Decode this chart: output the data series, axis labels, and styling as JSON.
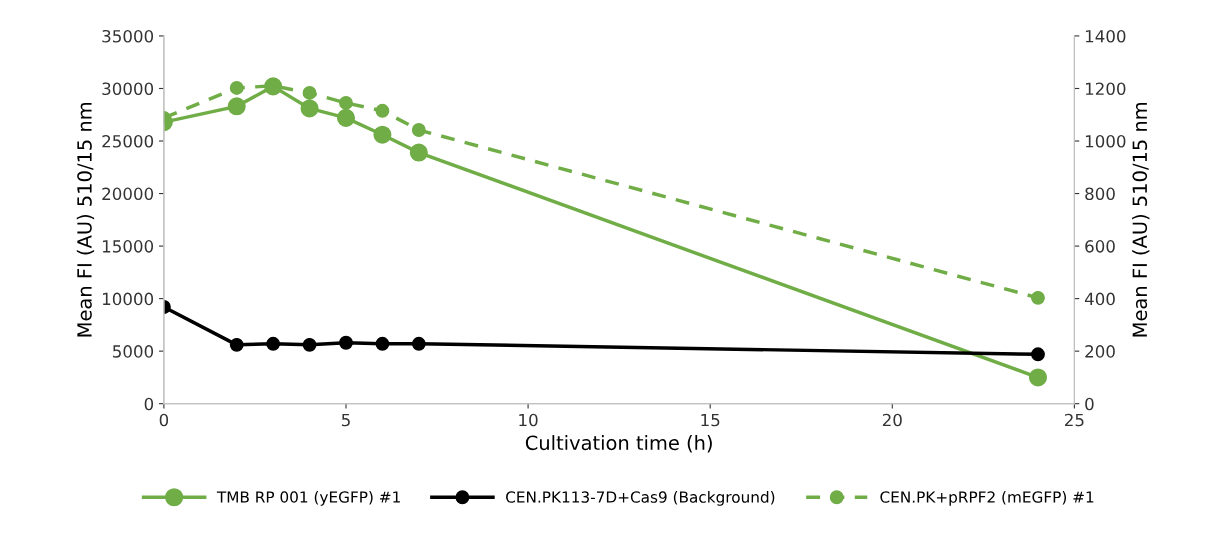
{
  "chart_data": {
    "type": "line",
    "xlabel": "Cultivation time (h)",
    "ylabel": "Mean FI (AU) 510/15 nm",
    "y2label": "Mean FI (AU) 510/15 nm",
    "x": [
      0,
      2,
      3,
      4,
      5,
      6,
      7,
      24
    ],
    "series": [
      {
        "name": "TMB RP 001 (yEGFP) #1",
        "color": "#70ad47",
        "line_style": "solid",
        "values": [
          26800,
          28300,
          30200,
          28100,
          27200,
          25600,
          23900,
          2500
        ]
      },
      {
        "name": "CEN.PK113-7D+Cas9 (Background)",
        "color": "#000000",
        "line_style": "solid",
        "values": [
          9200,
          5600,
          5700,
          5600,
          5800,
          5700,
          5700,
          4700
        ]
      },
      {
        "name": "CEN.PK+pRPF2 (mEGFP) #1",
        "color": "#70ad47",
        "line_style": "dashed",
        "axis": "y2",
        "values": [
          1088,
          1202,
          1210,
          1183,
          1145,
          1115,
          1042,
          403
        ]
      }
    ],
    "xlim": [
      0,
      25
    ],
    "xticks": [
      0,
      5,
      10,
      15,
      20,
      25
    ],
    "ylim": [
      0,
      35000
    ],
    "yticks": [
      0,
      5000,
      10000,
      15000,
      20000,
      25000,
      30000,
      35000
    ],
    "y2lim": [
      0,
      1400
    ],
    "y2ticks": [
      0,
      200,
      400,
      600,
      800,
      1000,
      1200,
      1400
    ],
    "marker": "circle",
    "grid": false,
    "legend": "bottom"
  }
}
